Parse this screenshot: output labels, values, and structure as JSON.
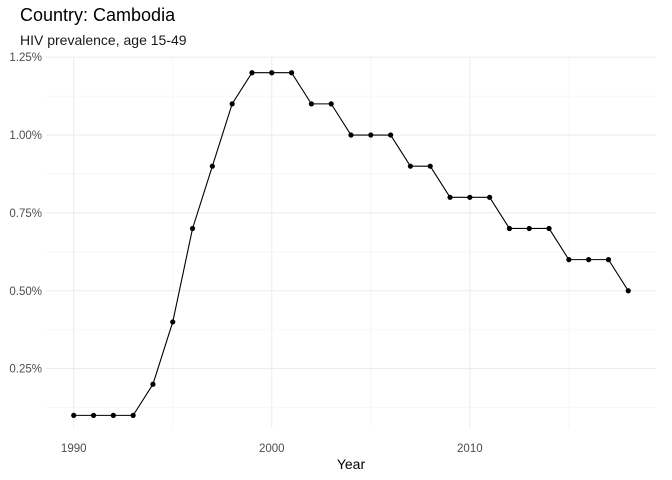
{
  "chart_data": {
    "type": "line",
    "title": "Country: Cambodia",
    "subtitle": "HIV prevalence, age 15-49",
    "xlabel": "Year",
    "ylabel": "",
    "xlim": [
      1988.6,
      2019.4
    ],
    "ylim": [
      0.0595,
      1.2505
    ],
    "x_ticks": [
      1990,
      2000,
      2010
    ],
    "x_tick_labels": [
      "1990",
      "2000",
      "2010"
    ],
    "x_minor": [
      1995,
      2005,
      2015
    ],
    "y_ticks": [
      0.25,
      0.5,
      0.75,
      1.0,
      1.25
    ],
    "y_tick_labels": [
      "0.25%",
      "0.50%",
      "0.75%",
      "1.00%",
      "1.25%"
    ],
    "grid": true,
    "series": [
      {
        "x": [
          1990,
          1991,
          1992,
          1993,
          1994,
          1995,
          1996,
          1997,
          1998,
          1999,
          2000,
          2001,
          2002,
          2003,
          2004,
          2005,
          2006,
          2007,
          2008,
          2009,
          2010,
          2011,
          2012,
          2013,
          2014,
          2015,
          2016,
          2017,
          2018
        ],
        "values": [
          0.1,
          0.1,
          0.1,
          0.1,
          0.2,
          0.4,
          0.7,
          0.9,
          1.1,
          1.2,
          1.2,
          1.2,
          1.1,
          1.1,
          1.0,
          1.0,
          1.0,
          0.9,
          0.9,
          0.8,
          0.8,
          0.8,
          0.7,
          0.7,
          0.7,
          0.6,
          0.6,
          0.6,
          0.5
        ]
      }
    ],
    "colors": {
      "line": "#000000",
      "grid_major": "#ebebeb",
      "grid_minor": "#f5f5f5"
    }
  }
}
